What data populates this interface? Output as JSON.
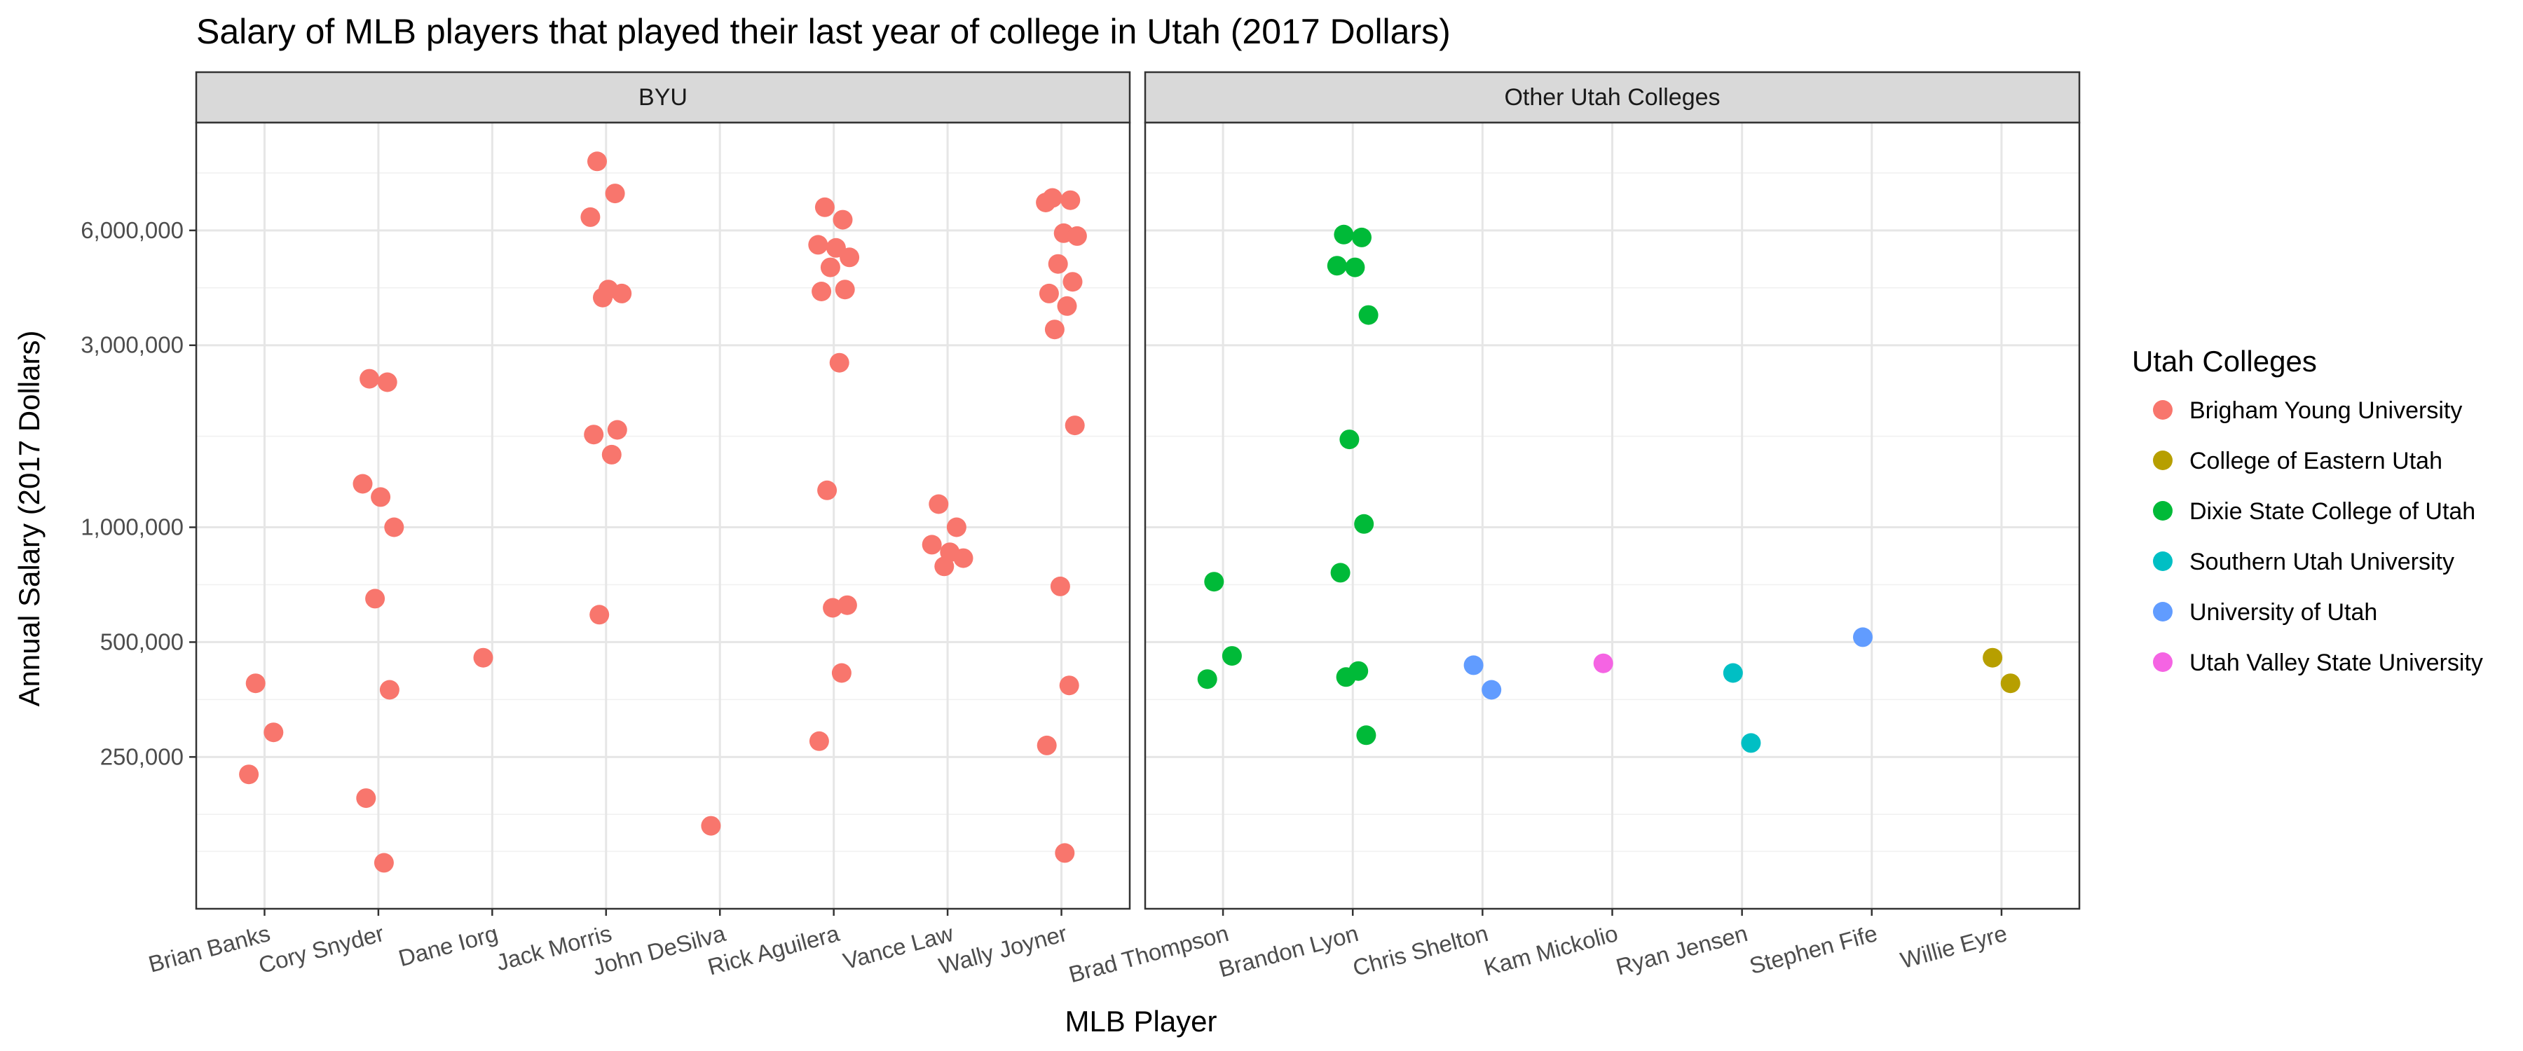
{
  "chart_data": {
    "type": "scatter",
    "title": "Salary of MLB players that played their last year of college in Utah (2017 Dollars)",
    "xlabel": "MLB Player",
    "ylabel": "Annual Salary (2017 Dollars)",
    "y_scale": "log",
    "ylim": [
      100000,
      11500000
    ],
    "y_ticks": [
      {
        "value": 250000,
        "label": "250,000"
      },
      {
        "value": 500000,
        "label": "500,000"
      },
      {
        "value": 1000000,
        "label": "1,000,000"
      },
      {
        "value": 3000000,
        "label": "3,000,000"
      },
      {
        "value": 6000000,
        "label": "6,000,000"
      }
    ],
    "grid": true,
    "legend": {
      "title": "Utah Colleges",
      "placement": "right",
      "entries": [
        {
          "name": "Brigham Young University",
          "color": "#F8766D"
        },
        {
          "name": "College of Eastern Utah",
          "color": "#B79F00"
        },
        {
          "name": "Dixie State College of Utah",
          "color": "#00BA38"
        },
        {
          "name": "Southern Utah University",
          "color": "#00BFC4"
        },
        {
          "name": "University of Utah",
          "color": "#619CFF"
        },
        {
          "name": "Utah Valley State University",
          "color": "#F564E3"
        }
      ]
    },
    "panels": [
      {
        "strip": "BYU",
        "categories": [
          "Brian Banks",
          "Cory Snyder",
          "Dane Iorg",
          "Jack Morris",
          "John DeSilva",
          "Rick Aguilera",
          "Vance Law",
          "Wally Joyner"
        ],
        "points": [
          {
            "player": "Brian Banks",
            "college": "Brigham Young University",
            "salary": 390000
          },
          {
            "player": "Brian Banks",
            "college": "Brigham Young University",
            "salary": 290000
          },
          {
            "player": "Brian Banks",
            "college": "Brigham Young University",
            "salary": 225000
          },
          {
            "player": "Cory Snyder",
            "college": "Brigham Young University",
            "salary": 2450000
          },
          {
            "player": "Cory Snyder",
            "college": "Brigham Young University",
            "salary": 2400000
          },
          {
            "player": "Cory Snyder",
            "college": "Brigham Young University",
            "salary": 1300000
          },
          {
            "player": "Cory Snyder",
            "college": "Brigham Young University",
            "salary": 1200000
          },
          {
            "player": "Cory Snyder",
            "college": "Brigham Young University",
            "salary": 1000000
          },
          {
            "player": "Cory Snyder",
            "college": "Brigham Young University",
            "salary": 650000
          },
          {
            "player": "Cory Snyder",
            "college": "Brigham Young University",
            "salary": 375000
          },
          {
            "player": "Cory Snyder",
            "college": "Brigham Young University",
            "salary": 195000
          },
          {
            "player": "Cory Snyder",
            "college": "Brigham Young University",
            "salary": 132000
          },
          {
            "player": "Dane Iorg",
            "college": "Brigham Young University",
            "salary": 455000
          },
          {
            "player": "Jack Morris",
            "college": "Brigham Young University",
            "salary": 9100000
          },
          {
            "player": "Jack Morris",
            "college": "Brigham Young University",
            "salary": 7500000
          },
          {
            "player": "Jack Morris",
            "college": "Brigham Young University",
            "salary": 6500000
          },
          {
            "player": "Jack Morris",
            "college": "Brigham Young University",
            "salary": 4200000
          },
          {
            "player": "Jack Morris",
            "college": "Brigham Young University",
            "salary": 4100000
          },
          {
            "player": "Jack Morris",
            "college": "Brigham Young University",
            "salary": 4000000
          },
          {
            "player": "Jack Morris",
            "college": "Brigham Young University",
            "salary": 1800000
          },
          {
            "player": "Jack Morris",
            "college": "Brigham Young University",
            "salary": 1750000
          },
          {
            "player": "Jack Morris",
            "college": "Brigham Young University",
            "salary": 1550000
          },
          {
            "player": "Jack Morris",
            "college": "Brigham Young University",
            "salary": 590000
          },
          {
            "player": "John DeSilva",
            "college": "Brigham Young University",
            "salary": 165000
          },
          {
            "player": "Rick Aguilera",
            "college": "Brigham Young University",
            "salary": 6900000
          },
          {
            "player": "Rick Aguilera",
            "college": "Brigham Young University",
            "salary": 6400000
          },
          {
            "player": "Rick Aguilera",
            "college": "Brigham Young University",
            "salary": 5500000
          },
          {
            "player": "Rick Aguilera",
            "college": "Brigham Young University",
            "salary": 5400000
          },
          {
            "player": "Rick Aguilera",
            "college": "Brigham Young University",
            "salary": 5100000
          },
          {
            "player": "Rick Aguilera",
            "college": "Brigham Young University",
            "salary": 4800000
          },
          {
            "player": "Rick Aguilera",
            "college": "Brigham Young University",
            "salary": 4200000
          },
          {
            "player": "Rick Aguilera",
            "college": "Brigham Young University",
            "salary": 4150000
          },
          {
            "player": "Rick Aguilera",
            "college": "Brigham Young University",
            "salary": 2700000
          },
          {
            "player": "Rick Aguilera",
            "college": "Brigham Young University",
            "salary": 1250000
          },
          {
            "player": "Rick Aguilera",
            "college": "Brigham Young University",
            "salary": 625000
          },
          {
            "player": "Rick Aguilera",
            "college": "Brigham Young University",
            "salary": 615000
          },
          {
            "player": "Rick Aguilera",
            "college": "Brigham Young University",
            "salary": 415000
          },
          {
            "player": "Rick Aguilera",
            "college": "Brigham Young University",
            "salary": 275000
          },
          {
            "player": "Vance Law",
            "college": "Brigham Young University",
            "salary": 1150000
          },
          {
            "player": "Vance Law",
            "college": "Brigham Young University",
            "salary": 1000000
          },
          {
            "player": "Vance Law",
            "college": "Brigham Young University",
            "salary": 900000
          },
          {
            "player": "Vance Law",
            "college": "Brigham Young University",
            "salary": 860000
          },
          {
            "player": "Vance Law",
            "college": "Brigham Young University",
            "salary": 830000
          },
          {
            "player": "Vance Law",
            "college": "Brigham Young University",
            "salary": 790000
          },
          {
            "player": "Wally Joyner",
            "college": "Brigham Young University",
            "salary": 7300000
          },
          {
            "player": "Wally Joyner",
            "college": "Brigham Young University",
            "salary": 7200000
          },
          {
            "player": "Wally Joyner",
            "college": "Brigham Young University",
            "salary": 7100000
          },
          {
            "player": "Wally Joyner",
            "college": "Brigham Young University",
            "salary": 5900000
          },
          {
            "player": "Wally Joyner",
            "college": "Brigham Young University",
            "salary": 5800000
          },
          {
            "player": "Wally Joyner",
            "college": "Brigham Young University",
            "salary": 4900000
          },
          {
            "player": "Wally Joyner",
            "college": "Brigham Young University",
            "salary": 4400000
          },
          {
            "player": "Wally Joyner",
            "college": "Brigham Young University",
            "salary": 4100000
          },
          {
            "player": "Wally Joyner",
            "college": "Brigham Young University",
            "salary": 3800000
          },
          {
            "player": "Wally Joyner",
            "college": "Brigham Young University",
            "salary": 3300000
          },
          {
            "player": "Wally Joyner",
            "college": "Brigham Young University",
            "salary": 1850000
          },
          {
            "player": "Wally Joyner",
            "college": "Brigham Young University",
            "salary": 700000
          },
          {
            "player": "Wally Joyner",
            "college": "Brigham Young University",
            "salary": 385000
          },
          {
            "player": "Wally Joyner",
            "college": "Brigham Young University",
            "salary": 268000
          },
          {
            "player": "Wally Joyner",
            "college": "Brigham Young University",
            "salary": 140000
          }
        ]
      },
      {
        "strip": "Other Utah Colleges",
        "categories": [
          "Brad Thompson",
          "Brandon Lyon",
          "Chris Shelton",
          "Kam Mickolio",
          "Ryan Jensen",
          "Stephen Fife",
          "Willie Eyre"
        ],
        "points": [
          {
            "player": "Brad Thompson",
            "college": "Dixie State College of Utah",
            "salary": 720000
          },
          {
            "player": "Brad Thompson",
            "college": "Dixie State College of Utah",
            "salary": 460000
          },
          {
            "player": "Brad Thompson",
            "college": "Dixie State College of Utah",
            "salary": 400000
          },
          {
            "player": "Brandon Lyon",
            "college": "Dixie State College of Utah",
            "salary": 5850000
          },
          {
            "player": "Brandon Lyon",
            "college": "Dixie State College of Utah",
            "salary": 5750000
          },
          {
            "player": "Brandon Lyon",
            "college": "Dixie State College of Utah",
            "salary": 4850000
          },
          {
            "player": "Brandon Lyon",
            "college": "Dixie State College of Utah",
            "salary": 4800000
          },
          {
            "player": "Brandon Lyon",
            "college": "Dixie State College of Utah",
            "salary": 3600000
          },
          {
            "player": "Brandon Lyon",
            "college": "Dixie State College of Utah",
            "salary": 1700000
          },
          {
            "player": "Brandon Lyon",
            "college": "Dixie State College of Utah",
            "salary": 1020000
          },
          {
            "player": "Brandon Lyon",
            "college": "Dixie State College of Utah",
            "salary": 760000
          },
          {
            "player": "Brandon Lyon",
            "college": "Dixie State College of Utah",
            "salary": 420000
          },
          {
            "player": "Brandon Lyon",
            "college": "Dixie State College of Utah",
            "salary": 405000
          },
          {
            "player": "Brandon Lyon",
            "college": "Dixie State College of Utah",
            "salary": 285000
          },
          {
            "player": "Chris Shelton",
            "college": "University of Utah",
            "salary": 435000
          },
          {
            "player": "Chris Shelton",
            "college": "University of Utah",
            "salary": 375000
          },
          {
            "player": "Kam Mickolio",
            "college": "Utah Valley State University",
            "salary": 440000
          },
          {
            "player": "Ryan Jensen",
            "college": "Southern Utah University",
            "salary": 415000
          },
          {
            "player": "Ryan Jensen",
            "college": "Southern Utah University",
            "salary": 272000
          },
          {
            "player": "Stephen Fife",
            "college": "University of Utah",
            "salary": 515000
          },
          {
            "player": "Willie Eyre",
            "college": "College of Eastern Utah",
            "salary": 455000
          },
          {
            "player": "Willie Eyre",
            "college": "College of Eastern Utah",
            "salary": 390000
          }
        ]
      }
    ]
  }
}
